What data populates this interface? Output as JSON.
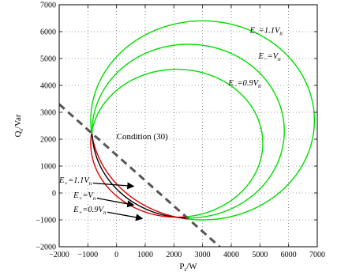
{
  "chart_data": {
    "type": "line",
    "xlabel": "P",
    "xlabel_sub": "s",
    "xlabel_unit": "/W",
    "ylabel": "Q",
    "ylabel_sub": "s",
    "ylabel_unit": "/Var",
    "xlim": [
      -2000,
      7000
    ],
    "ylim": [
      -2000,
      7000
    ],
    "xticks": [
      -2000,
      -1000,
      0,
      1000,
      2000,
      3000,
      4000,
      5000,
      6000,
      7000
    ],
    "yticks": [
      -2000,
      -1000,
      0,
      1000,
      2000,
      3000,
      4000,
      5000,
      6000,
      7000
    ],
    "grid": "dotted",
    "series": [
      {
        "color": "#e00000",
        "width": 1.4,
        "ellipse": {
          "cx": 3000,
          "cy": 2700,
          "rx": 3900,
          "ry": 3700
        },
        "clip_right_of_line": true
      },
      {
        "color": "#000000",
        "width": 1.4,
        "ellipse": {
          "cx": 2500,
          "cy": 2300,
          "rx": 3350,
          "ry": 3230
        },
        "clip_right_of_line": true
      },
      {
        "color": "#e00000",
        "width": 1.4,
        "ellipse": {
          "cx": 2100,
          "cy": 1850,
          "rx": 3000,
          "ry": 2750
        },
        "clip_right_of_line": true
      },
      {
        "color": "#00dd00",
        "width": 1.4,
        "ellipse": {
          "cx": 2100,
          "cy": 1850,
          "rx": 3000,
          "ry": 2750
        },
        "clip_left_of_line": true
      },
      {
        "color": "#00dd00",
        "width": 1.4,
        "ellipse": {
          "cx": 2500,
          "cy": 2300,
          "rx": 3350,
          "ry": 3230
        },
        "clip_left_of_line": true
      },
      {
        "color": "#00dd00",
        "width": 1.4,
        "ellipse": {
          "cx": 3000,
          "cy": 2700,
          "rx": 3900,
          "ry": 3700
        },
        "clip_left_of_line": true
      }
    ],
    "condition_line": {
      "label": "Condition (30)",
      "from": [
        -2000,
        3300
      ],
      "to": [
        3600,
        -2000
      ],
      "color": "#555555",
      "label_at": [
        0,
        2000
      ]
    },
    "annotations": [
      {
        "id": "e-minus-1-1",
        "base": "E",
        "sub": "−",
        "rest": "=1.1V",
        "rest_sub": "n",
        "at": [
          4650,
          5950
        ],
        "arrow_to": [
          null,
          null
        ]
      },
      {
        "id": "e-minus-1",
        "base": "E",
        "sub": "−",
        "rest": "=V",
        "rest_sub": "n",
        "at": [
          4950,
          5000
        ],
        "arrow_to": [
          null,
          null
        ]
      },
      {
        "id": "e-minus-0-9",
        "base": "E",
        "sub": "−",
        "rest": "=0.9V",
        "rest_sub": "n",
        "at": [
          3900,
          4000
        ],
        "arrow_to": [
          null,
          null
        ]
      },
      {
        "id": "e-plus-1-1",
        "base": "E",
        "sub": "+",
        "rest": "=1.1V",
        "rest_sub": "n",
        "at": [
          -2000,
          380
        ],
        "arrow_to": [
          600,
          250
        ]
      },
      {
        "id": "e-plus-1",
        "base": "E",
        "sub": "+",
        "rest": "=V",
        "rest_sub": "n",
        "at": [
          -1500,
          -180
        ],
        "arrow_to": [
          600,
          -450
        ]
      },
      {
        "id": "e-plus-0-9",
        "base": "E",
        "sub": "+",
        "rest": "=0.9V",
        "rest_sub": "n",
        "at": [
          -1500,
          -700
        ],
        "arrow_to": [
          900,
          -950
        ]
      }
    ]
  }
}
